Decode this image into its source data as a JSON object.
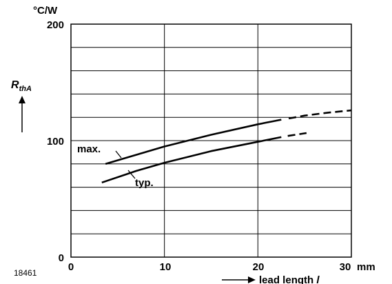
{
  "figure_number": "18461",
  "chart_data": {
    "type": "line",
    "x_unit": "mm",
    "y_unit": "°C/W",
    "xlabel": "lead length",
    "xlabel_symbol": "l",
    "ylabel_symbol": "R",
    "ylabel_subscript": "thA",
    "xlim": [
      0,
      30
    ],
    "ylim": [
      0,
      200
    ],
    "x_ticks": [
      "0",
      "10",
      "20",
      "30"
    ],
    "y_ticks": [
      "0",
      "100",
      "200"
    ],
    "grid": true,
    "series": [
      {
        "name": "max.",
        "solid": [
          [
            3.7,
            80
          ],
          [
            10,
            95
          ],
          [
            15,
            105
          ],
          [
            20,
            114
          ],
          [
            22.5,
            118
          ]
        ],
        "dashed": [
          [
            23.3,
            119
          ],
          [
            25,
            121.5
          ],
          [
            27.5,
            124
          ],
          [
            30,
            126
          ]
        ]
      },
      {
        "name": "typ.",
        "solid": [
          [
            3.3,
            64
          ],
          [
            7,
            74
          ],
          [
            10,
            81
          ],
          [
            15,
            91
          ],
          [
            20,
            99
          ],
          [
            22.5,
            103
          ]
        ],
        "dashed": [
          [
            23.2,
            104
          ],
          [
            25.2,
            106.5
          ]
        ]
      }
    ]
  }
}
